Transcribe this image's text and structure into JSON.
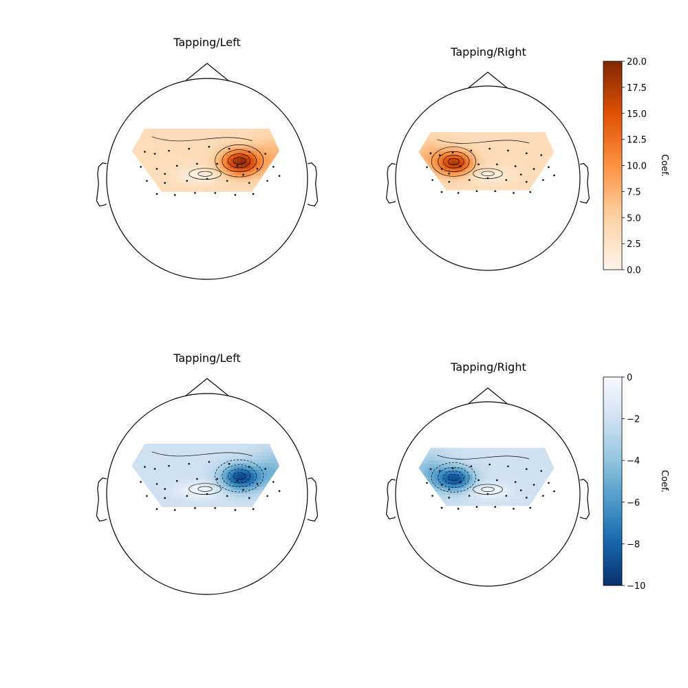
{
  "chart_data": [
    {
      "type": "heatmap",
      "title": "Tapping/Left",
      "colormap": "Oranges",
      "vlim": [
        0,
        20
      ],
      "sensor_count": 32,
      "peak": {
        "value": 19,
        "hemisphere": "right"
      }
    },
    {
      "type": "heatmap",
      "title": "Tapping/Right",
      "colormap": "Oranges",
      "vlim": [
        0,
        20
      ],
      "sensor_count": 32,
      "peak": {
        "value": 17,
        "hemisphere": "left"
      }
    },
    {
      "type": "heatmap",
      "title": "Tapping/Left",
      "colormap": "Blues_r",
      "vlim": [
        -10,
        0
      ],
      "sensor_count": 32,
      "peak": {
        "value": -9,
        "hemisphere": "right"
      }
    },
    {
      "type": "heatmap",
      "title": "Tapping/Right",
      "colormap": "Blues_r",
      "vlim": [
        -10,
        0
      ],
      "sensor_count": 32,
      "peak": {
        "value": -8.5,
        "hemisphere": "left"
      }
    }
  ],
  "colorbars": [
    {
      "label": "Coef.",
      "ticks": [
        "20.0",
        "17.5",
        "15.0",
        "12.5",
        "10.0",
        "7.5",
        "5.0",
        "2.5",
        "0.0"
      ],
      "color_top": "#7f2704",
      "color_mid": "#f58d40",
      "color_bottom": "#fff5eb"
    },
    {
      "label": "Coef.",
      "ticks": [
        "0",
        "−2",
        "−4",
        "−6",
        "−8",
        "−10"
      ],
      "color_top": "#f7fbff",
      "color_mid": "#6aaed6",
      "color_bottom": "#08306b"
    }
  ]
}
